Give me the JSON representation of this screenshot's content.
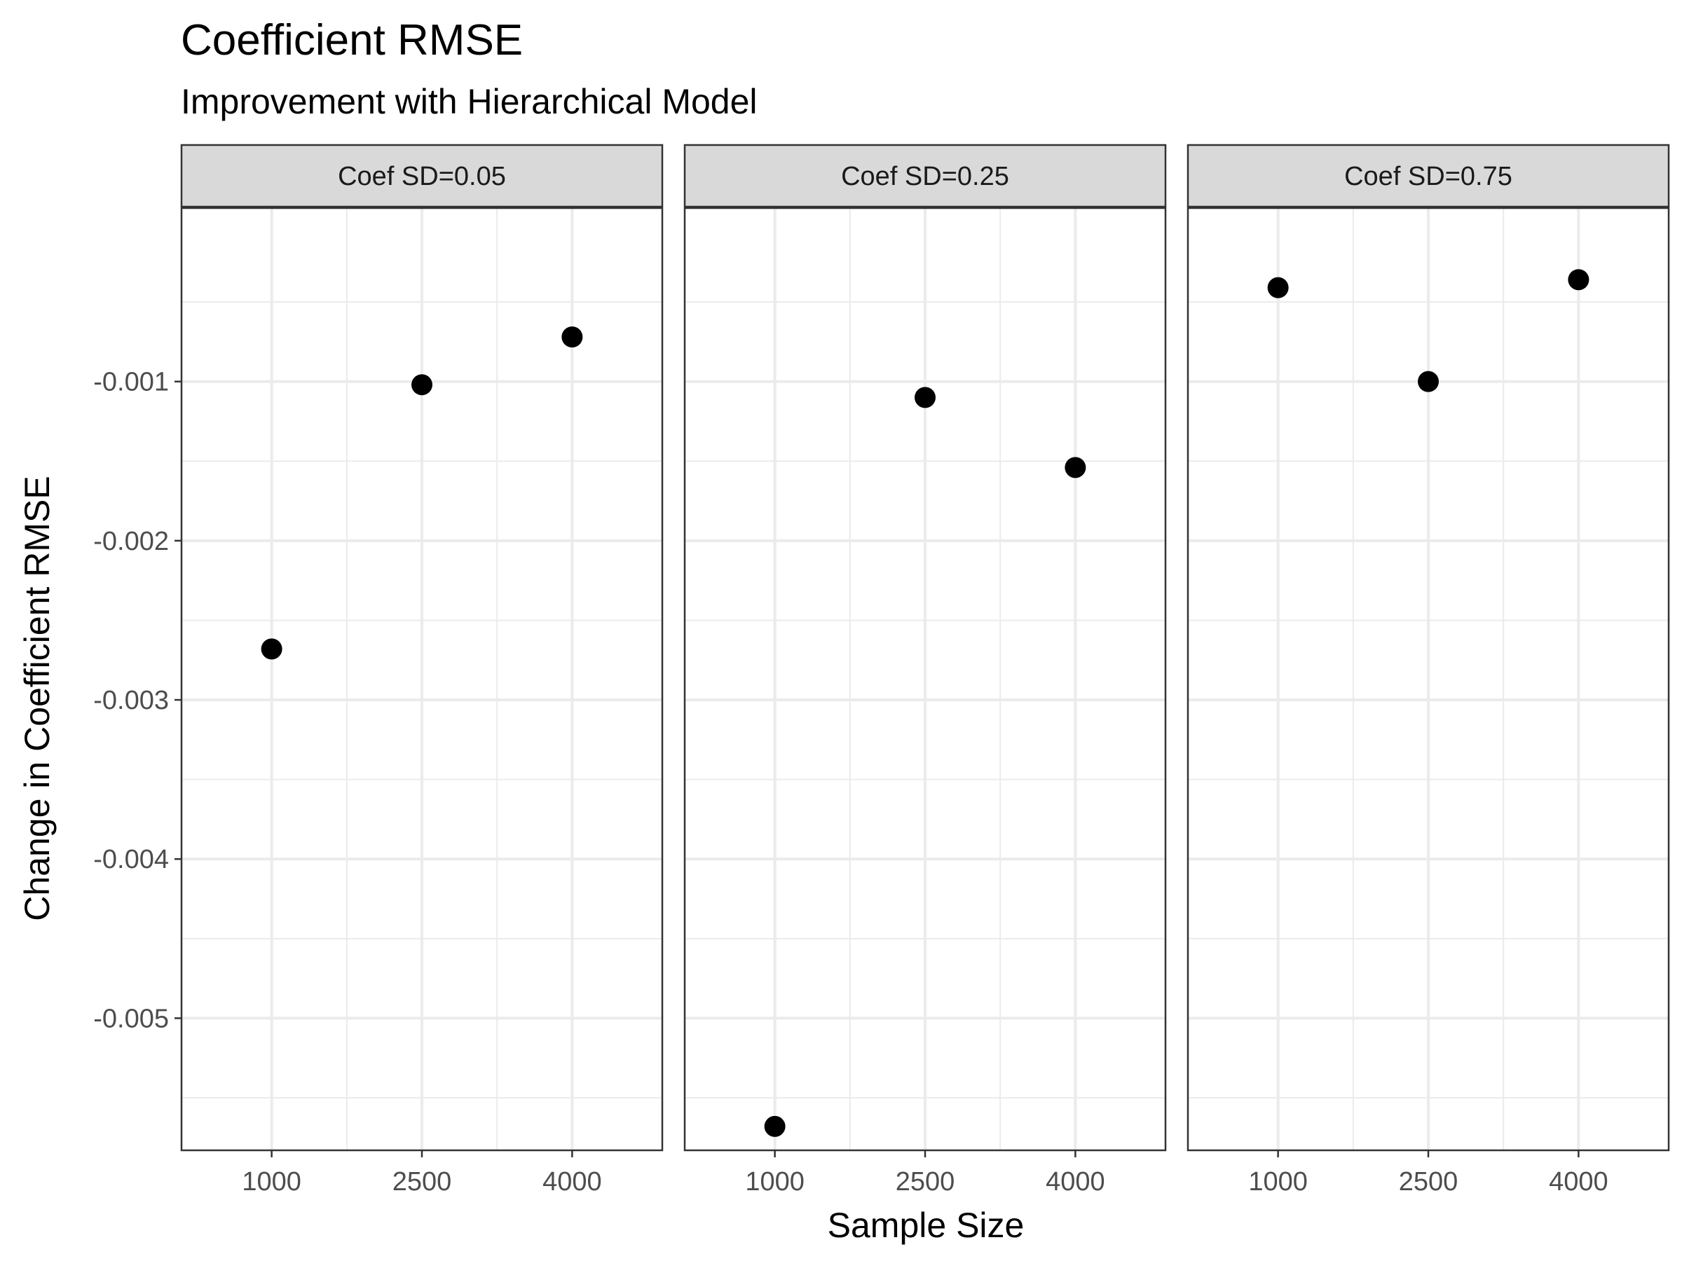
{
  "chart_data": {
    "type": "scatter",
    "title": "Coefficient RMSE",
    "subtitle": "Improvement with Hierarchical Model",
    "xlabel": "Sample Size",
    "ylabel": "Change in Coefficient RMSE",
    "x_ticks": [
      1000,
      2500,
      4000
    ],
    "y_ticks": [
      -0.001,
      -0.002,
      -0.003,
      -0.004,
      -0.005
    ],
    "y_tick_labels": [
      "-0.001",
      "-0.002",
      "-0.003",
      "-0.004",
      "-0.005"
    ],
    "xlim": [
      100,
      4900
    ],
    "ylim": [
      -0.00583,
      9e-05
    ],
    "grid": true,
    "point_color": "#000000",
    "facets": [
      {
        "label": "Coef SD=0.05",
        "points": [
          {
            "x": 1000,
            "y": -0.00268
          },
          {
            "x": 2500,
            "y": -0.00102
          },
          {
            "x": 4000,
            "y": -0.00072
          }
        ]
      },
      {
        "label": "Coef SD=0.25",
        "points": [
          {
            "x": 1000,
            "y": -0.00568
          },
          {
            "x": 2500,
            "y": -0.0011
          },
          {
            "x": 4000,
            "y": -0.00154
          }
        ]
      },
      {
        "label": "Coef SD=0.75",
        "points": [
          {
            "x": 1000,
            "y": -0.00041
          },
          {
            "x": 2500,
            "y": -0.001
          },
          {
            "x": 4000,
            "y": -0.00036
          }
        ]
      }
    ]
  }
}
